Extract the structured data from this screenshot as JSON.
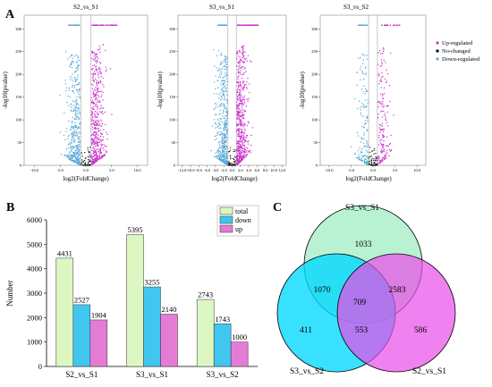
{
  "panel_labels": {
    "A": "A",
    "B": "B",
    "C": "C"
  },
  "colors": {
    "up": "#cc33cc",
    "no_change": "#000000",
    "down": "#5aa9d6",
    "bar_total": "#ddf7c2",
    "bar_down": "#41c6f0",
    "bar_up": "#e47cd6",
    "venn_s3s1": "#b8f2d3",
    "venn_s3s2": "#00d9ff",
    "venn_s2s1": "#e94be9"
  },
  "chart_data": [
    {
      "type": "scatter",
      "title": "S2_vs_S1",
      "xlabel": "log2(FoldChange)",
      "ylabel": "-log10(pvalue)",
      "xticks": [
        "-10.0",
        "-5.0",
        "0.0",
        "5.0",
        "10.0"
      ],
      "xlim": [
        -12,
        12
      ],
      "yticks": [
        "0",
        "50",
        "100",
        "150",
        "200",
        "250",
        "300"
      ],
      "ylim": [
        0,
        330
      ],
      "thresholds": {
        "log2fc": 1,
        "y_cap": 308
      }
    },
    {
      "type": "scatter",
      "title": "S3_vs_S1",
      "xlabel": "log2(FoldChange)",
      "ylabel": "-log10(pvalue)",
      "xticks": [
        "-12.0",
        "-10.0",
        "-8.0",
        "-6.0",
        "-4.0",
        "-2.0",
        "0.0",
        "2.0",
        "4.0",
        "6.0",
        "8.0",
        "10.0",
        "12.0"
      ],
      "xlim": [
        -13,
        13
      ],
      "yticks": [
        "0",
        "50",
        "100",
        "150",
        "200",
        "250",
        "300"
      ],
      "ylim": [
        0,
        330
      ],
      "thresholds": {
        "log2fc": 1,
        "y_cap": 308
      }
    },
    {
      "type": "scatter",
      "title": "S3_vs_S2",
      "xlabel": "log2(FoldChange)",
      "ylabel": "-log10(pvalue)",
      "xticks": [
        "-10.0",
        "-5.0",
        "0.0",
        "5.0",
        "10.0"
      ],
      "xlim": [
        -12,
        12
      ],
      "yticks": [
        "0",
        "50",
        "100",
        "150",
        "200",
        "250",
        "300"
      ],
      "ylim": [
        0,
        330
      ],
      "thresholds": {
        "log2fc": 1,
        "y_cap": 308
      },
      "legend": [
        "Up-regulated",
        "No-changed",
        "Down-regulated"
      ],
      "legend_position": "right"
    },
    {
      "type": "bar",
      "categories": [
        "S2_vs_S1",
        "S3_vs_S1",
        "S3_vs_S2"
      ],
      "series": [
        {
          "name": "total",
          "values": [
            4431,
            5395,
            2743
          ]
        },
        {
          "name": "down",
          "values": [
            2527,
            3255,
            1743
          ]
        },
        {
          "name": "up",
          "values": [
            1904,
            2140,
            1000
          ]
        }
      ],
      "ylabel": "Number",
      "yticks": [
        "0",
        "1000",
        "2000",
        "3000",
        "4000",
        "5000",
        "6000"
      ],
      "ylim": [
        0,
        6000
      ],
      "legend_position": "top-right"
    },
    {
      "type": "venn",
      "sets": [
        "S3_vs_S1",
        "S3_vs_S2",
        "S2_vs_S1"
      ],
      "regions": {
        "S3_vs_S1_only": 1033,
        "S3_vs_S2_only": 411,
        "S2_vs_S1_only": 586,
        "S3_vs_S1&S3_vs_S2": 1070,
        "S3_vs_S1&S2_vs_S1": 2583,
        "S3_vs_S2&S2_vs_S1": 553,
        "all": 709
      }
    }
  ]
}
